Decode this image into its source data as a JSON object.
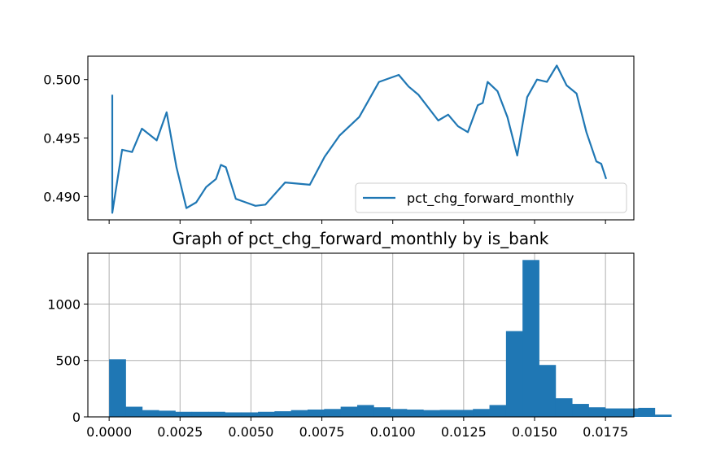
{
  "chart_data": [
    {
      "type": "line",
      "title": "",
      "xlabel": "",
      "ylabel": "",
      "ylim": [
        0.488,
        0.502
      ],
      "yticks": [
        "0.490",
        "0.495",
        "0.500"
      ],
      "x_tick_labels_visible": false,
      "grid": false,
      "legend": {
        "position": "lower-right"
      },
      "series": [
        {
          "name": "pct_chg_forward_monthly",
          "color": "#1f77b4",
          "x": [
            0,
            0.02,
            0.04,
            0.06,
            0.09,
            0.11,
            0.13,
            0.15,
            0.17,
            0.19,
            0.21,
            0.22,
            0.23,
            0.25,
            0.27,
            0.29,
            0.31,
            0.35,
            0.4,
            0.43,
            0.46,
            0.5,
            0.54,
            0.58,
            0.6,
            0.62,
            0.66,
            0.68,
            0.7,
            0.72,
            0.74,
            0.75,
            0.76,
            0.78,
            0.8,
            0.82,
            0.84,
            0.86,
            0.88,
            0.9,
            0.92,
            0.94,
            0.96,
            0.98,
            0.99,
            1
          ],
          "values": [
            0.4886,
            0.494,
            0.4938,
            0.4958,
            0.4948,
            0.4972,
            0.4925,
            0.489,
            0.4895,
            0.4908,
            0.4915,
            0.4927,
            0.4925,
            0.4898,
            0.4895,
            0.4892,
            0.4893,
            0.4912,
            0.491,
            0.4934,
            0.4952,
            0.4968,
            0.4998,
            0.5004,
            0.4994,
            0.4987,
            0.4965,
            0.497,
            0.496,
            0.4955,
            0.4978,
            0.498,
            0.4998,
            0.499,
            0.4968,
            0.4935,
            0.4985,
            0.5,
            0.4998,
            0.5012,
            0.4995,
            0.4988,
            0.4955,
            0.493,
            0.4928,
            0.4915
          ]
        }
      ]
    },
    {
      "type": "bar",
      "subtype": "histogram",
      "title": "Graph of pct_chg_forward_monthly by is_bank",
      "xlabel": "",
      "ylabel": "",
      "xlim": [
        -0.00075,
        0.0185
      ],
      "ylim": [
        0,
        1450
      ],
      "xticks": [
        "0.0000",
        "0.0025",
        "0.0050",
        "0.0075",
        "0.0100",
        "0.0125",
        "0.0150",
        "0.0175"
      ],
      "yticks": [
        "0",
        "500",
        "1000"
      ],
      "grid": true,
      "color": "#1f77b4",
      "bin_start": 0,
      "bin_width": 0.000583,
      "values": [
        510,
        90,
        60,
        55,
        45,
        45,
        45,
        40,
        40,
        45,
        50,
        60,
        65,
        70,
        90,
        105,
        85,
        70,
        65,
        60,
        62,
        62,
        70,
        105,
        760,
        1390,
        460,
        165,
        115,
        85,
        75,
        75,
        80,
        20
      ]
    }
  ]
}
